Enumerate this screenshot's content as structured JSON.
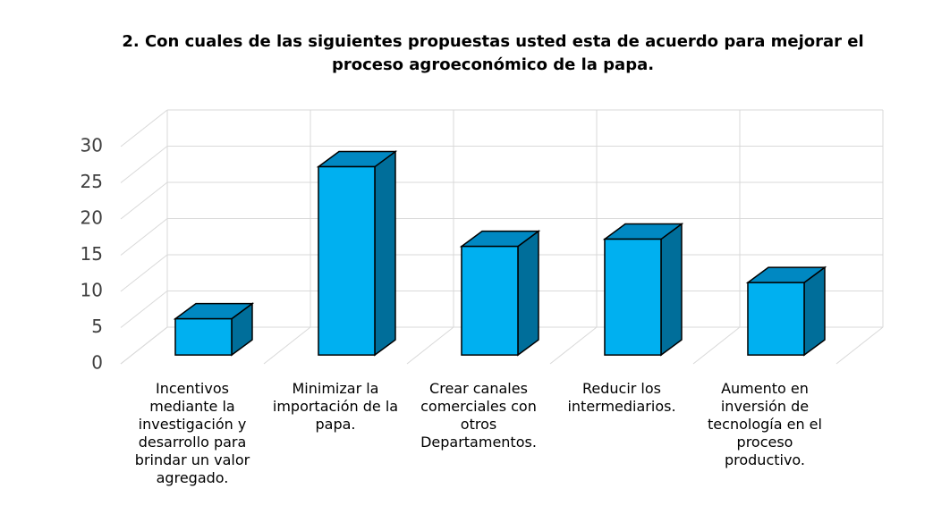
{
  "chart_data": {
    "type": "bar3d",
    "title": "2. Con cuales de las siguientes propuestas usted esta de acuerdo para mejorar  el proceso agroeconómico de la papa.",
    "categories": [
      "Incentivos mediante la investigación y desarrollo para brindar un valor agregado.",
      "Minimizar la importación de la papa.",
      "Crear canales comerciales con otros Departamentos.",
      "Reducir los intermediarios.",
      "Aumento en inversión de tecnología en el proceso productivo."
    ],
    "values": [
      5,
      26,
      15,
      16,
      10
    ],
    "color": "#00b0f0",
    "ylim": [
      0,
      30
    ],
    "yticks": [
      0,
      5,
      10,
      15,
      20,
      25,
      30
    ],
    "grid": true
  }
}
